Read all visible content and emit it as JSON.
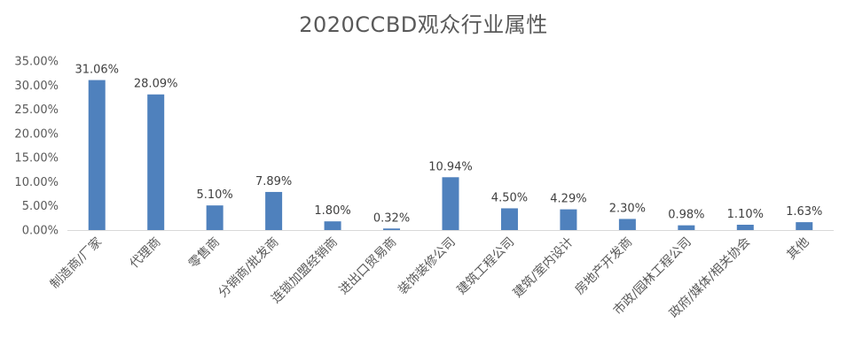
{
  "chart_data": {
    "type": "bar",
    "title": "2020CCBD观众行业属性",
    "xlabel": "",
    "ylabel": "",
    "categories": [
      "制造商/厂家",
      "代理商",
      "零售商",
      "分销商/批发商",
      "连锁加盟经销商",
      "进出口贸易商",
      "装饰装修公司",
      "建筑工程公司",
      "建筑/室内设计",
      "房地产开发商",
      "市政/园林工程公司",
      "政府/媒体/相关协会",
      "其他"
    ],
    "values": [
      31.06,
      28.09,
      5.1,
      7.89,
      1.8,
      0.32,
      10.94,
      4.5,
      4.29,
      2.3,
      0.98,
      1.1,
      1.63
    ],
    "data_labels": [
      "31.06%",
      "28.09%",
      "5.10%",
      "7.89%",
      "1.80%",
      "0.32%",
      "10.94%",
      "4.50%",
      "4.29%",
      "2.30%",
      "0.98%",
      "1.10%",
      "1.63%"
    ],
    "ylim": [
      0,
      35
    ],
    "yticks": [
      0,
      5,
      10,
      15,
      20,
      25,
      30,
      35
    ],
    "ytick_labels": [
      "0.00%",
      "5.00%",
      "10.00%",
      "15.00%",
      "20.00%",
      "25.00%",
      "30.00%",
      "35.00%"
    ],
    "grid": false,
    "legend": "none",
    "bar_color": "#4f81bd",
    "axis_color": "#d9d9d9"
  }
}
